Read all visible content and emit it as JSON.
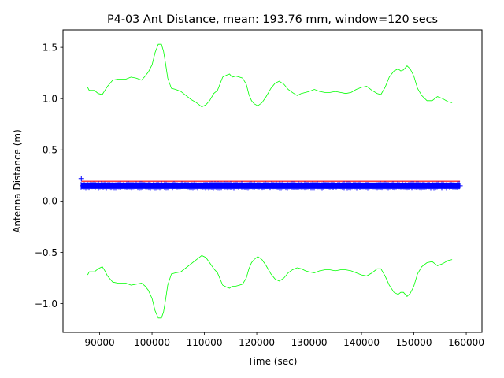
{
  "chart_data": {
    "type": "line",
    "title": "P4-03 Ant Distance, mean: 193.76 mm, window=120 secs",
    "xlabel": "Time (sec)",
    "ylabel": "Antenna Distance (m)",
    "xlim": [
      83000,
      163000
    ],
    "ylim": [
      -1.28,
      1.67
    ],
    "xticks": [
      90000,
      100000,
      110000,
      120000,
      130000,
      140000,
      150000,
      160000
    ],
    "xtick_labels": [
      "90000",
      "100000",
      "110000",
      "120000",
      "130000",
      "140000",
      "150000",
      "160000"
    ],
    "yticks": [
      -1.0,
      -0.5,
      0.0,
      0.5,
      1.0,
      1.5
    ],
    "ytick_labels": [
      "−1.0",
      "−0.5",
      "0.0",
      "0.5",
      "1.0",
      "1.5"
    ],
    "grid": false,
    "legend": false,
    "series": [
      {
        "role": "upper-bound",
        "color": "#00ff00",
        "style": "line",
        "x": [
          87700,
          88000,
          89000,
          89700,
          90500,
          91000,
          91500,
          92500,
          93500,
          95000,
          96000,
          97000,
          98000,
          98700,
          99300,
          100000,
          100600,
          101200,
          101800,
          102200,
          102600,
          103000,
          103700,
          104500,
          105500,
          106500,
          107500,
          108500,
          109500,
          110300,
          111000,
          111800,
          112500,
          113500,
          114300,
          114800,
          115300,
          116000,
          116700,
          117300,
          118000,
          118500,
          119000,
          119500,
          120200,
          121000,
          121800,
          122700,
          123500,
          124300,
          125200,
          126000,
          126800,
          127700,
          128500,
          129300,
          130000,
          131000,
          132000,
          133000,
          134000,
          135000,
          136000,
          137000,
          138000,
          139000,
          140000,
          141000,
          142000,
          143000,
          143700,
          144500,
          145300,
          146200,
          147000,
          147500,
          148000,
          148700,
          149300,
          150000,
          150700,
          151500,
          152500,
          153500,
          154500,
          155500,
          156500,
          157300
        ],
        "y": [
          1.11,
          1.08,
          1.08,
          1.05,
          1.04,
          1.08,
          1.12,
          1.18,
          1.19,
          1.19,
          1.21,
          1.2,
          1.18,
          1.22,
          1.26,
          1.33,
          1.45,
          1.53,
          1.53,
          1.46,
          1.34,
          1.2,
          1.1,
          1.09,
          1.07,
          1.03,
          0.99,
          0.96,
          0.92,
          0.94,
          0.98,
          1.05,
          1.08,
          1.21,
          1.23,
          1.24,
          1.21,
          1.22,
          1.21,
          1.2,
          1.14,
          1.04,
          0.98,
          0.95,
          0.93,
          0.96,
          1.02,
          1.1,
          1.15,
          1.17,
          1.14,
          1.09,
          1.06,
          1.03,
          1.05,
          1.06,
          1.07,
          1.09,
          1.07,
          1.06,
          1.06,
          1.07,
          1.06,
          1.05,
          1.06,
          1.09,
          1.11,
          1.12,
          1.08,
          1.05,
          1.04,
          1.11,
          1.21,
          1.27,
          1.29,
          1.27,
          1.28,
          1.32,
          1.29,
          1.22,
          1.1,
          1.03,
          0.98,
          0.98,
          1.02,
          1.0,
          0.97,
          0.96
        ]
      },
      {
        "role": "lower-bound",
        "color": "#00ff00",
        "style": "line",
        "x": [
          87700,
          88000,
          89000,
          89700,
          90500,
          91000,
          91500,
          92500,
          93500,
          95000,
          96000,
          97000,
          98000,
          98700,
          99300,
          100000,
          100600,
          101200,
          101800,
          102200,
          102600,
          103000,
          103700,
          104500,
          105500,
          106500,
          107500,
          108500,
          109500,
          110300,
          111000,
          111800,
          112500,
          113500,
          114300,
          114800,
          115300,
          116000,
          116700,
          117300,
          118000,
          118500,
          119000,
          119500,
          120200,
          121000,
          121800,
          122700,
          123500,
          124300,
          125200,
          126000,
          126800,
          127700,
          128500,
          129300,
          130000,
          131000,
          132000,
          133000,
          134000,
          135000,
          136000,
          137000,
          138000,
          139000,
          140000,
          141000,
          142000,
          143000,
          143700,
          144500,
          145300,
          146200,
          147000,
          147500,
          148000,
          148700,
          149300,
          150000,
          150700,
          151500,
          152500,
          153500,
          154500,
          155500,
          156500,
          157300
        ],
        "y": [
          -0.72,
          -0.69,
          -0.69,
          -0.66,
          -0.64,
          -0.68,
          -0.73,
          -0.79,
          -0.8,
          -0.8,
          -0.82,
          -0.81,
          -0.8,
          -0.83,
          -0.87,
          -0.95,
          -1.07,
          -1.14,
          -1.14,
          -1.08,
          -0.96,
          -0.82,
          -0.71,
          -0.7,
          -0.69,
          -0.65,
          -0.61,
          -0.57,
          -0.53,
          -0.55,
          -0.6,
          -0.66,
          -0.7,
          -0.82,
          -0.84,
          -0.85,
          -0.83,
          -0.83,
          -0.82,
          -0.81,
          -0.75,
          -0.66,
          -0.6,
          -0.57,
          -0.54,
          -0.57,
          -0.63,
          -0.71,
          -0.76,
          -0.78,
          -0.75,
          -0.7,
          -0.67,
          -0.65,
          -0.66,
          -0.68,
          -0.69,
          -0.7,
          -0.68,
          -0.67,
          -0.67,
          -0.68,
          -0.67,
          -0.67,
          -0.68,
          -0.7,
          -0.72,
          -0.73,
          -0.7,
          -0.66,
          -0.66,
          -0.73,
          -0.82,
          -0.89,
          -0.91,
          -0.89,
          -0.89,
          -0.93,
          -0.9,
          -0.83,
          -0.71,
          -0.64,
          -0.6,
          -0.59,
          -0.63,
          -0.61,
          -0.58,
          -0.57
        ]
      },
      {
        "role": "mean",
        "color": "#ff0000",
        "style": "line",
        "x": [
          86500,
          158800
        ],
        "y": [
          0.19376,
          0.19376
        ]
      },
      {
        "role": "measurements",
        "color": "#0000ff",
        "style": "band",
        "x": [
          86500,
          158800
        ],
        "y_min": 0.12,
        "y_max": 0.18,
        "outliers": [
          {
            "x": 86500,
            "y": 0.22
          },
          {
            "x": 86700,
            "y": 0.15
          },
          {
            "x": 158800,
            "y": 0.15
          }
        ]
      }
    ]
  }
}
